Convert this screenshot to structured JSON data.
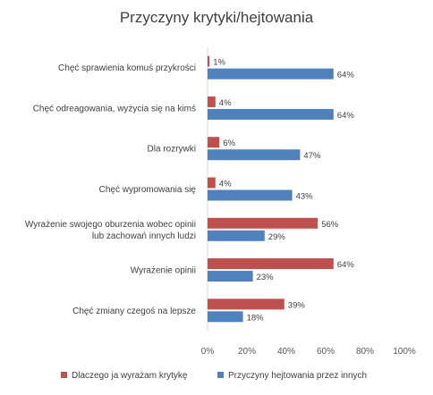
{
  "chart_data": {
    "type": "bar",
    "orientation": "horizontal",
    "title": "Przyczyny krytyki/hejtowania",
    "categories": [
      [
        "Chęć sprawienia komuś przykrości"
      ],
      [
        "Chęć odreagowania, wyżycia się na kimś"
      ],
      [
        "Dla rozrywki"
      ],
      [
        "Chęć wypromowania się"
      ],
      [
        "Wyrażenie swojego oburzenia wobec opinii",
        "lub zachowań innych ludzi"
      ],
      [
        "Wyrażenie opinii"
      ],
      [
        "Chęć zmiany czegoś na lepsze"
      ]
    ],
    "series": [
      {
        "name": "Dlaczego ja wyrażam krytykę",
        "color": "#C0504D",
        "values": [
          1,
          4,
          6,
          4,
          56,
          64,
          39
        ]
      },
      {
        "name": "Przyczyny hejtowania przez innych",
        "color": "#4F81BD",
        "values": [
          64,
          64,
          47,
          43,
          29,
          23,
          18
        ]
      }
    ],
    "xlim": [
      0,
      100
    ],
    "xticks": [
      0,
      20,
      40,
      60,
      80,
      100
    ],
    "value_format": "%",
    "grid": false,
    "legend_position": "bottom"
  }
}
